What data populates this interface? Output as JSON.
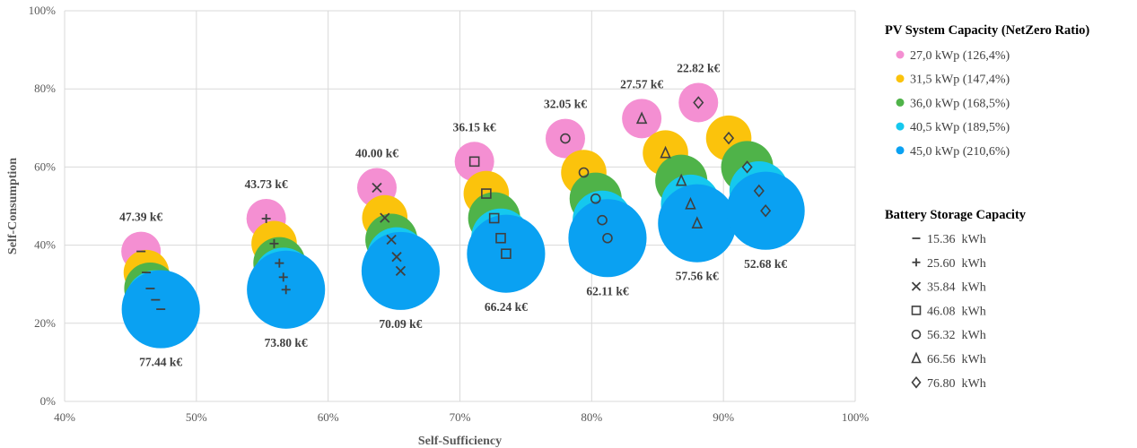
{
  "chart_data": {
    "type": "scatter",
    "xlabel": "Self-Sufficiency",
    "ylabel": "Self-Consumption",
    "xlim": [
      40,
      100
    ],
    "ylim": [
      0,
      100
    ],
    "x_ticks": [
      "40%",
      "50%",
      "60%",
      "70%",
      "80%",
      "90%",
      "100%"
    ],
    "y_ticks": [
      "0%",
      "20%",
      "40%",
      "60%",
      "80%",
      "100%"
    ],
    "grid": true,
    "pv_legend_title": "PV System Capacity (NetZero Ratio)",
    "battery_legend_title": "Battery Storage Capacity",
    "pv_series": [
      {
        "name": "27,0 kWp (126,4%)",
        "color": "#f48fd2",
        "bubble_size": 1.0
      },
      {
        "name": "31,5 kWp (147,4%)",
        "color": "#fbc30c",
        "bubble_size": 1.15
      },
      {
        "name": "36,0 kWp (168,5%)",
        "color": "#4fb349",
        "bubble_size": 1.32
      },
      {
        "name": "40,5 kWp (189,5%)",
        "color": "#15c8ee",
        "bubble_size": 1.5
      },
      {
        "name": "45,0 kWp (210,6%)",
        "color": "#0aa1f2",
        "bubble_size": 1.98
      }
    ],
    "battery_series": [
      {
        "name": "15.36  kWh",
        "marker": "dash"
      },
      {
        "name": "25.60  kWh",
        "marker": "plus"
      },
      {
        "name": "35.84  kWh",
        "marker": "cross"
      },
      {
        "name": "46.08  kWh",
        "marker": "square"
      },
      {
        "name": "56.32  kWh",
        "marker": "circle"
      },
      {
        "name": "66.56  kWh",
        "marker": "triangle"
      },
      {
        "name": "76.80  kWh",
        "marker": "diamond"
      }
    ],
    "points": [
      [
        [
          45.8,
          38.4
        ],
        [
          46.2,
          33.0
        ],
        [
          46.5,
          28.9
        ],
        [
          46.9,
          26.0
        ],
        [
          47.3,
          23.6
        ]
      ],
      [
        [
          55.3,
          46.8
        ],
        [
          55.9,
          40.4
        ],
        [
          56.3,
          35.4
        ],
        [
          56.6,
          31.8
        ],
        [
          56.8,
          28.6
        ]
      ],
      [
        [
          63.7,
          54.7
        ],
        [
          64.3,
          47.0
        ],
        [
          64.8,
          41.4
        ],
        [
          65.2,
          37.0
        ],
        [
          65.5,
          33.4
        ]
      ],
      [
        [
          71.1,
          61.4
        ],
        [
          72.0,
          53.2
        ],
        [
          72.6,
          46.9
        ],
        [
          73.1,
          41.8
        ],
        [
          73.5,
          37.8
        ]
      ],
      [
        [
          78.0,
          67.3
        ],
        [
          79.4,
          58.6
        ],
        [
          80.3,
          51.9
        ],
        [
          80.8,
          46.4
        ],
        [
          81.2,
          41.8
        ]
      ],
      [
        [
          83.8,
          72.4
        ],
        [
          85.6,
          63.6
        ],
        [
          86.8,
          56.5
        ],
        [
          87.5,
          50.5
        ],
        [
          88.0,
          45.6
        ]
      ],
      [
        [
          88.1,
          76.5
        ],
        [
          90.4,
          67.4
        ],
        [
          91.8,
          60.0
        ],
        [
          92.7,
          53.9
        ],
        [
          93.2,
          48.8
        ]
      ]
    ],
    "costs": [
      {
        "min": "47.39 k€",
        "max": "77.44 k€"
      },
      {
        "min": "43.73 k€",
        "max": "73.80 k€"
      },
      {
        "min": "40.00 k€",
        "max": "70.09 k€"
      },
      {
        "min": "36.15 k€",
        "max": "66.24 k€"
      },
      {
        "min": "32.05 k€",
        "max": "62.11 k€"
      },
      {
        "min": "27.57 k€",
        "max": "57.56 k€"
      },
      {
        "min": "22.82 k€",
        "max": "52.68 k€"
      }
    ]
  }
}
